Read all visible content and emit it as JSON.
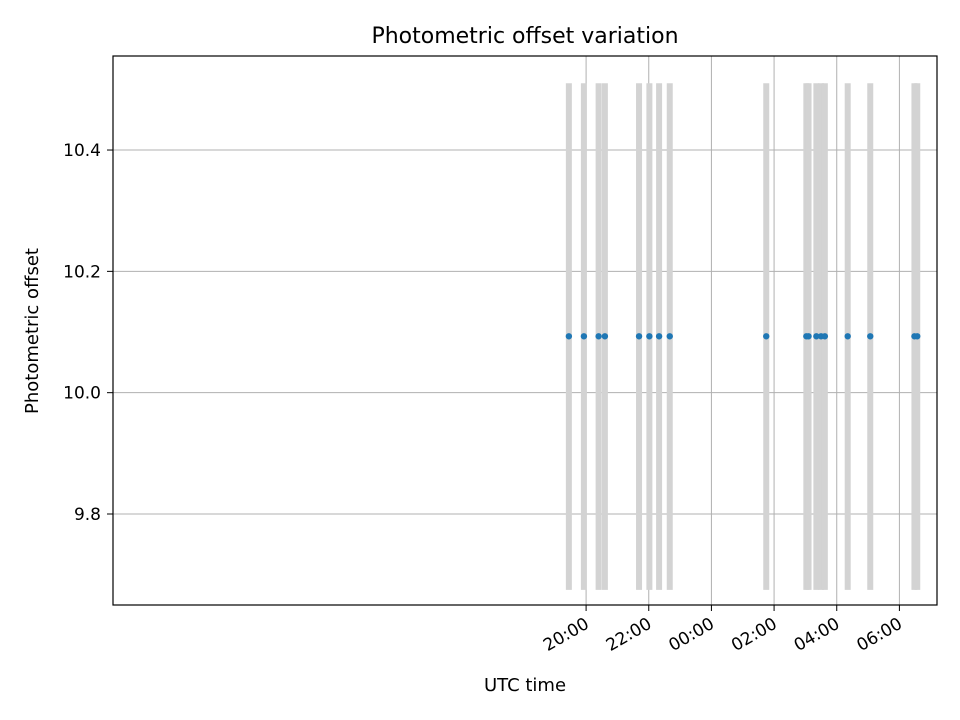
{
  "chart_data": {
    "type": "scatter",
    "title": "Photometric offset variation",
    "xlabel": "UTC time",
    "ylabel": "Photometric offset",
    "x_unit": "hours since 00:00 UTC",
    "xlim": [
      -19.1,
      7.2
    ],
    "ylim": [
      9.65,
      10.555
    ],
    "grid": true,
    "x_ticks": [
      {
        "value": -4,
        "label": "20:00"
      },
      {
        "value": -2,
        "label": "22:00"
      },
      {
        "value": 0,
        "label": "00:00"
      },
      {
        "value": 2,
        "label": "02:00"
      },
      {
        "value": 4,
        "label": "04:00"
      },
      {
        "value": 6,
        "label": "06:00"
      }
    ],
    "y_ticks": [
      {
        "value": 9.8,
        "label": "9.8"
      },
      {
        "value": 10.0,
        "label": "10.0"
      },
      {
        "value": 10.2,
        "label": "10.2"
      },
      {
        "value": 10.4,
        "label": "10.4"
      }
    ],
    "band_range": [
      9.675,
      10.51
    ],
    "band_color": "#d3d3d3",
    "point_color": "#1f77b4",
    "x": [
      -4.55,
      -4.07,
      -3.6,
      -3.4,
      -2.31,
      -1.98,
      -1.67,
      -1.33,
      1.75,
      3.03,
      3.1,
      3.35,
      3.5,
      3.62,
      4.35,
      5.07,
      6.48,
      6.57
    ],
    "y": [
      10.093,
      10.093,
      10.093,
      10.093,
      10.093,
      10.093,
      10.093,
      10.093,
      10.093,
      10.093,
      10.093,
      10.093,
      10.093,
      10.093,
      10.093,
      10.093,
      10.093,
      10.093
    ]
  }
}
